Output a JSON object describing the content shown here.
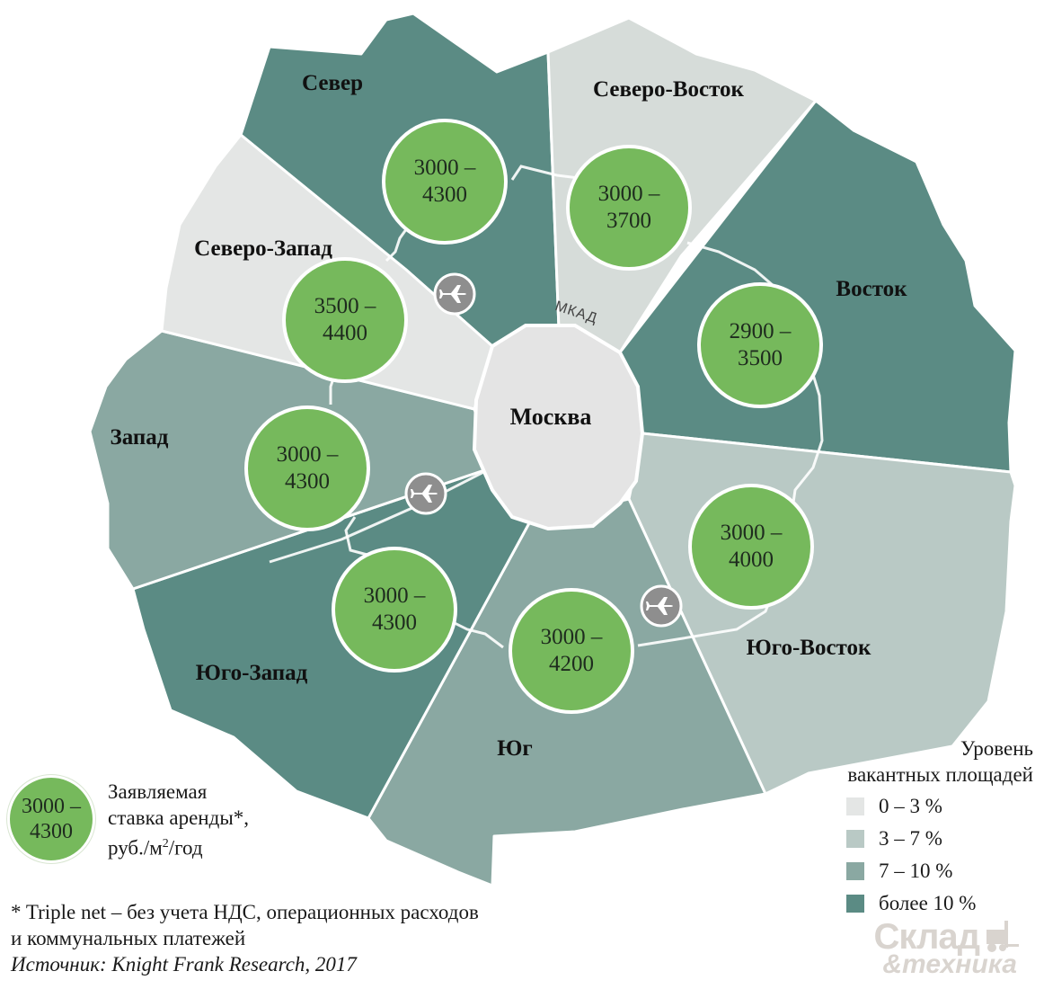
{
  "center": {
    "label": "Москва",
    "ring_label": "МКАД"
  },
  "regions": [
    {
      "id": "north",
      "label": "Север",
      "rate_top": "3000 –",
      "rate_bottom": "4300",
      "vacancy": "более 10 %"
    },
    {
      "id": "northeast",
      "label": "Северо-Восток",
      "rate_top": "3000 –",
      "rate_bottom": "3700",
      "vacancy": "0 – 3 %"
    },
    {
      "id": "east",
      "label": "Восток",
      "rate_top": "2900 –",
      "rate_bottom": "3500",
      "vacancy": "более 10 %"
    },
    {
      "id": "southeast",
      "label": "Юго-Восток",
      "rate_top": "3000 –",
      "rate_bottom": "4000",
      "vacancy": "3 – 7 %"
    },
    {
      "id": "south",
      "label": "Юг",
      "rate_top": "3000 –",
      "rate_bottom": "4200",
      "vacancy": "7 – 10 %"
    },
    {
      "id": "southwest",
      "label": "Юго-Запад",
      "rate_top": "3000 –",
      "rate_bottom": "4300",
      "vacancy": "более 10 %"
    },
    {
      "id": "west",
      "label": "Запад",
      "rate_top": "3000 –",
      "rate_bottom": "4300",
      "vacancy": "7 – 10 %"
    },
    {
      "id": "northwest",
      "label": "Северо-Запад",
      "rate_top": "3500 –",
      "rate_bottom": "4400",
      "vacancy": "0 – 3 %"
    }
  ],
  "rate_legend": {
    "circle_top": "3000 –",
    "circle_bottom": "4300",
    "line1": "Заявляемая",
    "line2": "ставка аренды*,",
    "line3_prefix": "руб./м",
    "line3_sup": "2",
    "line3_suffix": "/год"
  },
  "vacancy_legend": {
    "title_line1": "Уровень",
    "title_line2": "вакантных площадей",
    "items": [
      {
        "label": "0 – 3 %",
        "color": "#e4e6e5"
      },
      {
        "label": "3 – 7 %",
        "color": "#b9c9c5"
      },
      {
        "label": "7 – 10 %",
        "color": "#8aa8a2"
      },
      {
        "label": "более 10 %",
        "color": "#5b8b84"
      }
    ]
  },
  "footnote": {
    "line1": "* Triple net – без учета НДС, операционных расходов",
    "line2": "и коммунальных платежей",
    "source": "Источник: Knight Frank Research, 2017"
  },
  "brand": {
    "top": "Склад",
    "bottom": "&техника"
  },
  "icons": {
    "airport": "airplane-icon",
    "forklift": "forklift-icon"
  }
}
